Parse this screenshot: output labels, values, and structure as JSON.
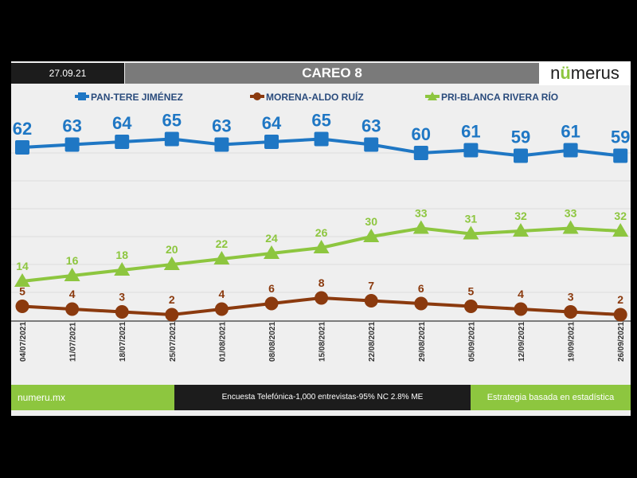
{
  "header": {
    "date": "27.09.21",
    "title": "CAREO 8",
    "logo": "numerus"
  },
  "footer": {
    "left": "numeru.mx",
    "middle": "Encuesta Telefónica-1,000 entrevistas-95% NC 2.8% ME",
    "right": "Estrategia basada en estadística"
  },
  "chart_data": {
    "type": "line",
    "title": "CAREO 8",
    "categories": [
      "04/07/2021",
      "11/07/2021",
      "18/07/2021",
      "25/07/2021",
      "01/08/2021",
      "08/08/2021",
      "15/08/2021",
      "22/08/2021",
      "29/08/2021",
      "05/09/2021",
      "12/09/2021",
      "19/09/2021",
      "26/09/2021"
    ],
    "series": [
      {
        "name": "PAN-TERE JIMÉNEZ",
        "color": "#1f77c4",
        "marker": "square",
        "values": [
          62,
          63,
          64,
          65,
          63,
          64,
          65,
          63,
          60,
          61,
          59,
          61,
          59
        ]
      },
      {
        "name": "MORENA-ALDO RUÍZ",
        "color": "#8b3a0e",
        "marker": "circle",
        "values": [
          5,
          4,
          3,
          2,
          4,
          6,
          8,
          7,
          6,
          5,
          4,
          3,
          2
        ]
      },
      {
        "name": "PRI-BLANCA RIVERA RÍO",
        "color": "#8dc63f",
        "marker": "triangle",
        "values": [
          14,
          16,
          18,
          20,
          22,
          24,
          26,
          30,
          33,
          31,
          32,
          33,
          32
        ]
      }
    ],
    "ylim": [
      0,
      70
    ],
    "grid": true,
    "legend": "top"
  }
}
